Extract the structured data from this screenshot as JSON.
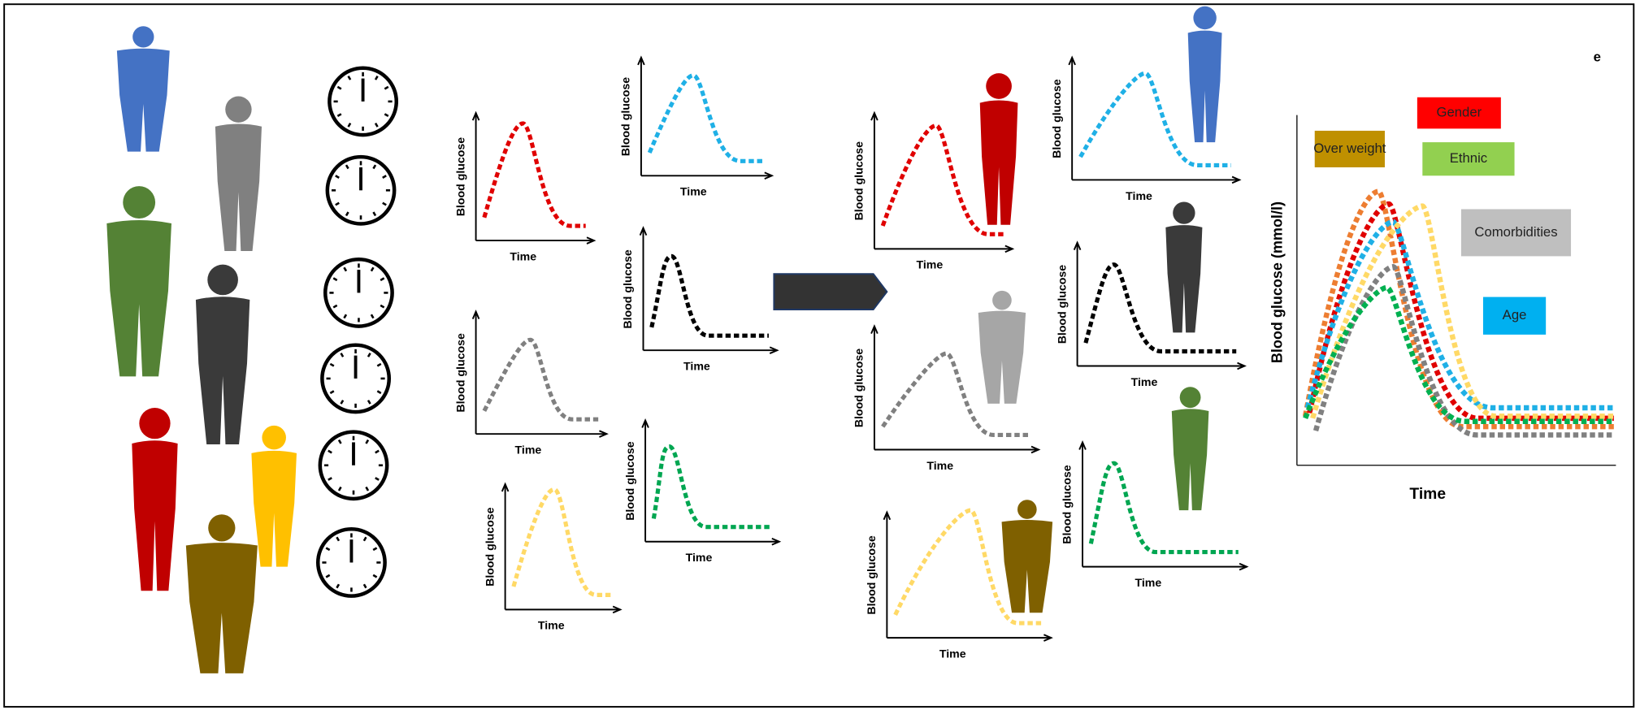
{
  "individual_panel": {
    "plots": [
      {
        "y_label": "Blood glucose",
        "x_label": "Time"
      },
      {
        "y_label": "Blood glucose",
        "x_label": "Time"
      },
      {
        "y_label": "Blood glucose",
        "x_label": "Time"
      },
      {
        "y_label": "Blood glucose",
        "x_label": "Time"
      },
      {
        "y_label": "Blood glucose",
        "x_label": "Time"
      },
      {
        "y_label": "Blood glucose",
        "x_label": "Time"
      }
    ]
  },
  "matched_panel": {
    "plots": [
      {
        "y_label": "Blood glucose",
        "x_label": "Time"
      },
      {
        "y_label": "Blood glucose",
        "x_label": "Time"
      },
      {
        "y_label": "Blood glucose",
        "x_label": "Time"
      },
      {
        "y_label": "Blood glucose",
        "x_label": "Time"
      },
      {
        "y_label": "Blood glucose",
        "x_label": "Time"
      },
      {
        "y_label": "Blood glucose",
        "x_label": "Time"
      }
    ]
  },
  "combined_panel": {
    "y_label": "Blood glucose (mmol/l)",
    "x_label": "Time",
    "factors": [
      "Over weight",
      "Gender",
      "Ethnic",
      "Comorbidities",
      "Age"
    ]
  },
  "corner_mark": "e"
}
